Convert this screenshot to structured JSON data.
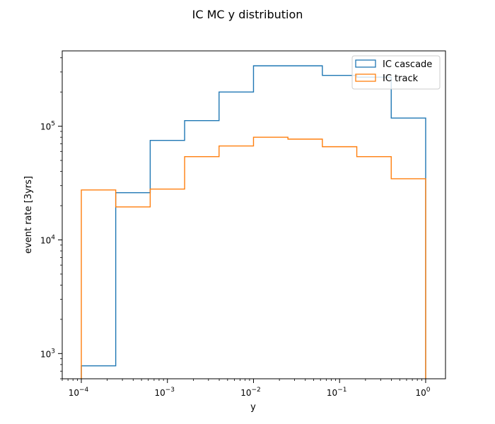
{
  "chart_data": {
    "type": "step-histogram",
    "title": "IC MC y distribution",
    "xlabel": "y",
    "ylabel": "event rate [3yrs]",
    "xscale": "log",
    "yscale": "log",
    "xlim": [
      6e-05,
      1.7
    ],
    "ylim": [
      600,
      460000
    ],
    "bin_edges": [
      0.0001,
      0.000251,
      0.000631,
      0.001585,
      0.003981,
      0.01,
      0.025119,
      0.063096,
      0.158489,
      0.398107,
      1.0
    ],
    "x_ticks": [
      {
        "value": 0.0001,
        "base": "10",
        "exp": "−4"
      },
      {
        "value": 0.001,
        "base": "10",
        "exp": "−3"
      },
      {
        "value": 0.01,
        "base": "10",
        "exp": "−2"
      },
      {
        "value": 0.1,
        "base": "10",
        "exp": "−1"
      },
      {
        "value": 1,
        "base": "10",
        "exp": "0"
      }
    ],
    "y_ticks": [
      {
        "value": 1000,
        "base": "10",
        "exp": "3"
      },
      {
        "value": 10000,
        "base": "10",
        "exp": "4"
      },
      {
        "value": 100000,
        "base": "10",
        "exp": "5"
      }
    ],
    "series": [
      {
        "name": "IC cascade",
        "color": "#1f77b4",
        "values": [
          780,
          26000,
          75000,
          112000,
          200000,
          340000,
          340000,
          280000,
          270000,
          118000
        ]
      },
      {
        "name": "IC track",
        "color": "#ff7f0e",
        "values": [
          27500,
          19500,
          28000,
          54000,
          67000,
          80000,
          77000,
          66000,
          54000,
          34500
        ]
      }
    ],
    "legend_position": "top-right",
    "grid": false
  }
}
